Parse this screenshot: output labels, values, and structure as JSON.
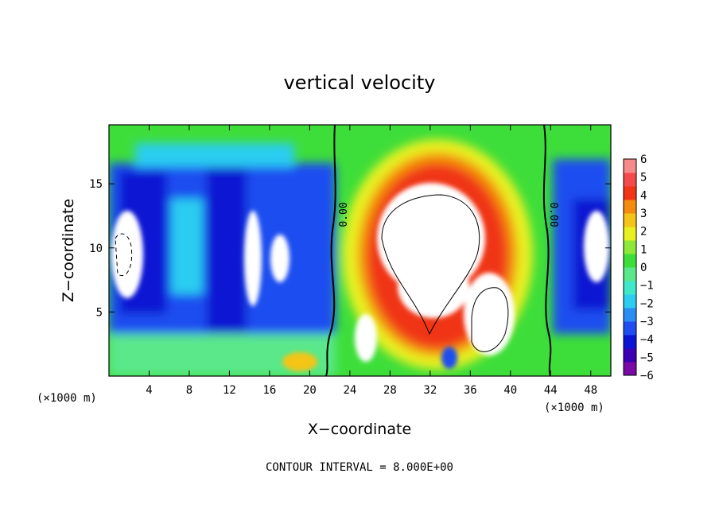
{
  "chart_data": {
    "type": "heatmap",
    "title": "vertical velocity",
    "xlabel": "X−coordinate",
    "ylabel": "Z−coordinate",
    "x_unit": "(×1000 m)",
    "y_unit": "(×1000 m)",
    "xlim": [
      0,
      50
    ],
    "ylim": [
      0,
      19.6
    ],
    "x_ticks": [
      4,
      8,
      12,
      16,
      20,
      24,
      28,
      32,
      36,
      40,
      44,
      48
    ],
    "y_ticks": [
      5,
      10,
      15
    ],
    "colorbar": {
      "range": [
        -6,
        6
      ],
      "ticks": [
        "6",
        "5",
        "4",
        "3",
        "2",
        "1",
        "0",
        "−1",
        "−2",
        "−3",
        "−4",
        "−5",
        "−6"
      ],
      "colors": [
        "#7a0aa6",
        "#3a00b4",
        "#0a14d2",
        "#1e4ef0",
        "#2a8cf5",
        "#2ccdf0",
        "#3fe8c8",
        "#5ae88a",
        "#3ede3a",
        "#8ee838",
        "#e8f020",
        "#f4c418",
        "#f48c10",
        "#f03414",
        "#f44a4a",
        "#f48a8a"
      ]
    },
    "contour_labels": [
      "0.00",
      "0.00"
    ],
    "footer": "CONTOUR INTERVAL = 8.000E+00"
  }
}
